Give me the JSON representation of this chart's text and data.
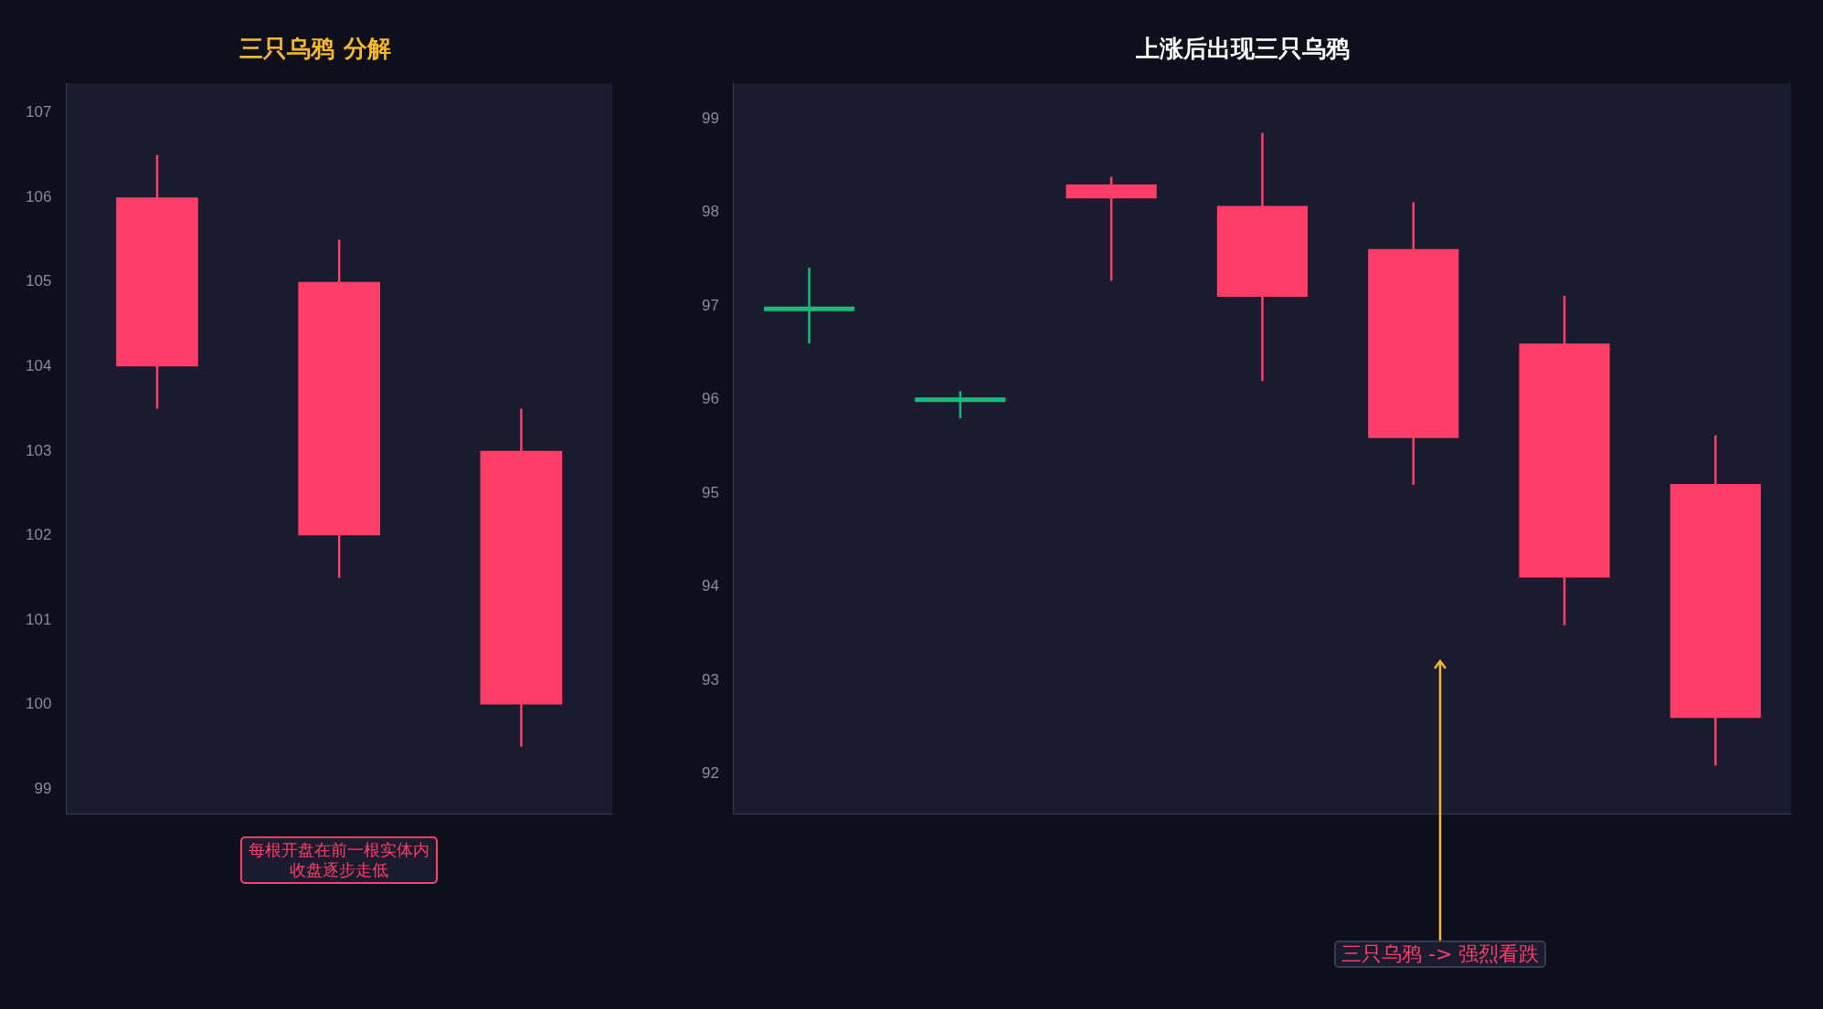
{
  "chart_data": [
    {
      "type": "candlestick",
      "title": "三只乌鸦 分解",
      "categories": [
        null,
        null,
        null
      ],
      "ohlc": [
        [
          106,
          106.5,
          103.5,
          104
        ],
        [
          105,
          105.5,
          101.5,
          102
        ],
        [
          103,
          103.5,
          99.5,
          100
        ]
      ],
      "colors": [
        "#ff3d68",
        "#ff3d68",
        "#ff3d68"
      ],
      "ylim": [
        98.7,
        107.35
      ],
      "yticks": [
        99,
        100,
        101,
        102,
        103,
        104,
        105,
        106,
        107
      ],
      "grid": false,
      "annotations": [
        "每根开盘在前一根实体内收盘逐步走低"
      ]
    },
    {
      "type": "candlestick",
      "title": "上涨后出现三只乌鸦",
      "categories": [
        null,
        null,
        null,
        null,
        null,
        null,
        null
      ],
      "ohlc": [
        [
          96.97,
          97.41,
          96.6,
          96.97
        ],
        [
          96.0,
          96.09,
          95.8,
          96.0
        ],
        [
          98.3,
          98.38,
          97.27,
          98.15
        ],
        [
          98.07,
          98.85,
          96.2,
          97.1
        ],
        [
          97.61,
          98.11,
          95.09,
          95.59
        ],
        [
          96.6,
          97.11,
          93.59,
          94.1
        ],
        [
          95.1,
          95.62,
          92.09,
          92.6
        ]
      ],
      "colors": [
        "#10c07a",
        "#10c07a",
        "#ff3d68",
        "#ff3d68",
        "#ff3d68",
        "#ff3d68",
        "#ff3d68"
      ],
      "ylim": [
        91.57,
        99.38
      ],
      "yticks": [
        92,
        93,
        94,
        95,
        96,
        97,
        98,
        99
      ],
      "grid": false,
      "annotations": [
        "三只乌鸦 -> 强烈看跌"
      ]
    }
  ]
}
